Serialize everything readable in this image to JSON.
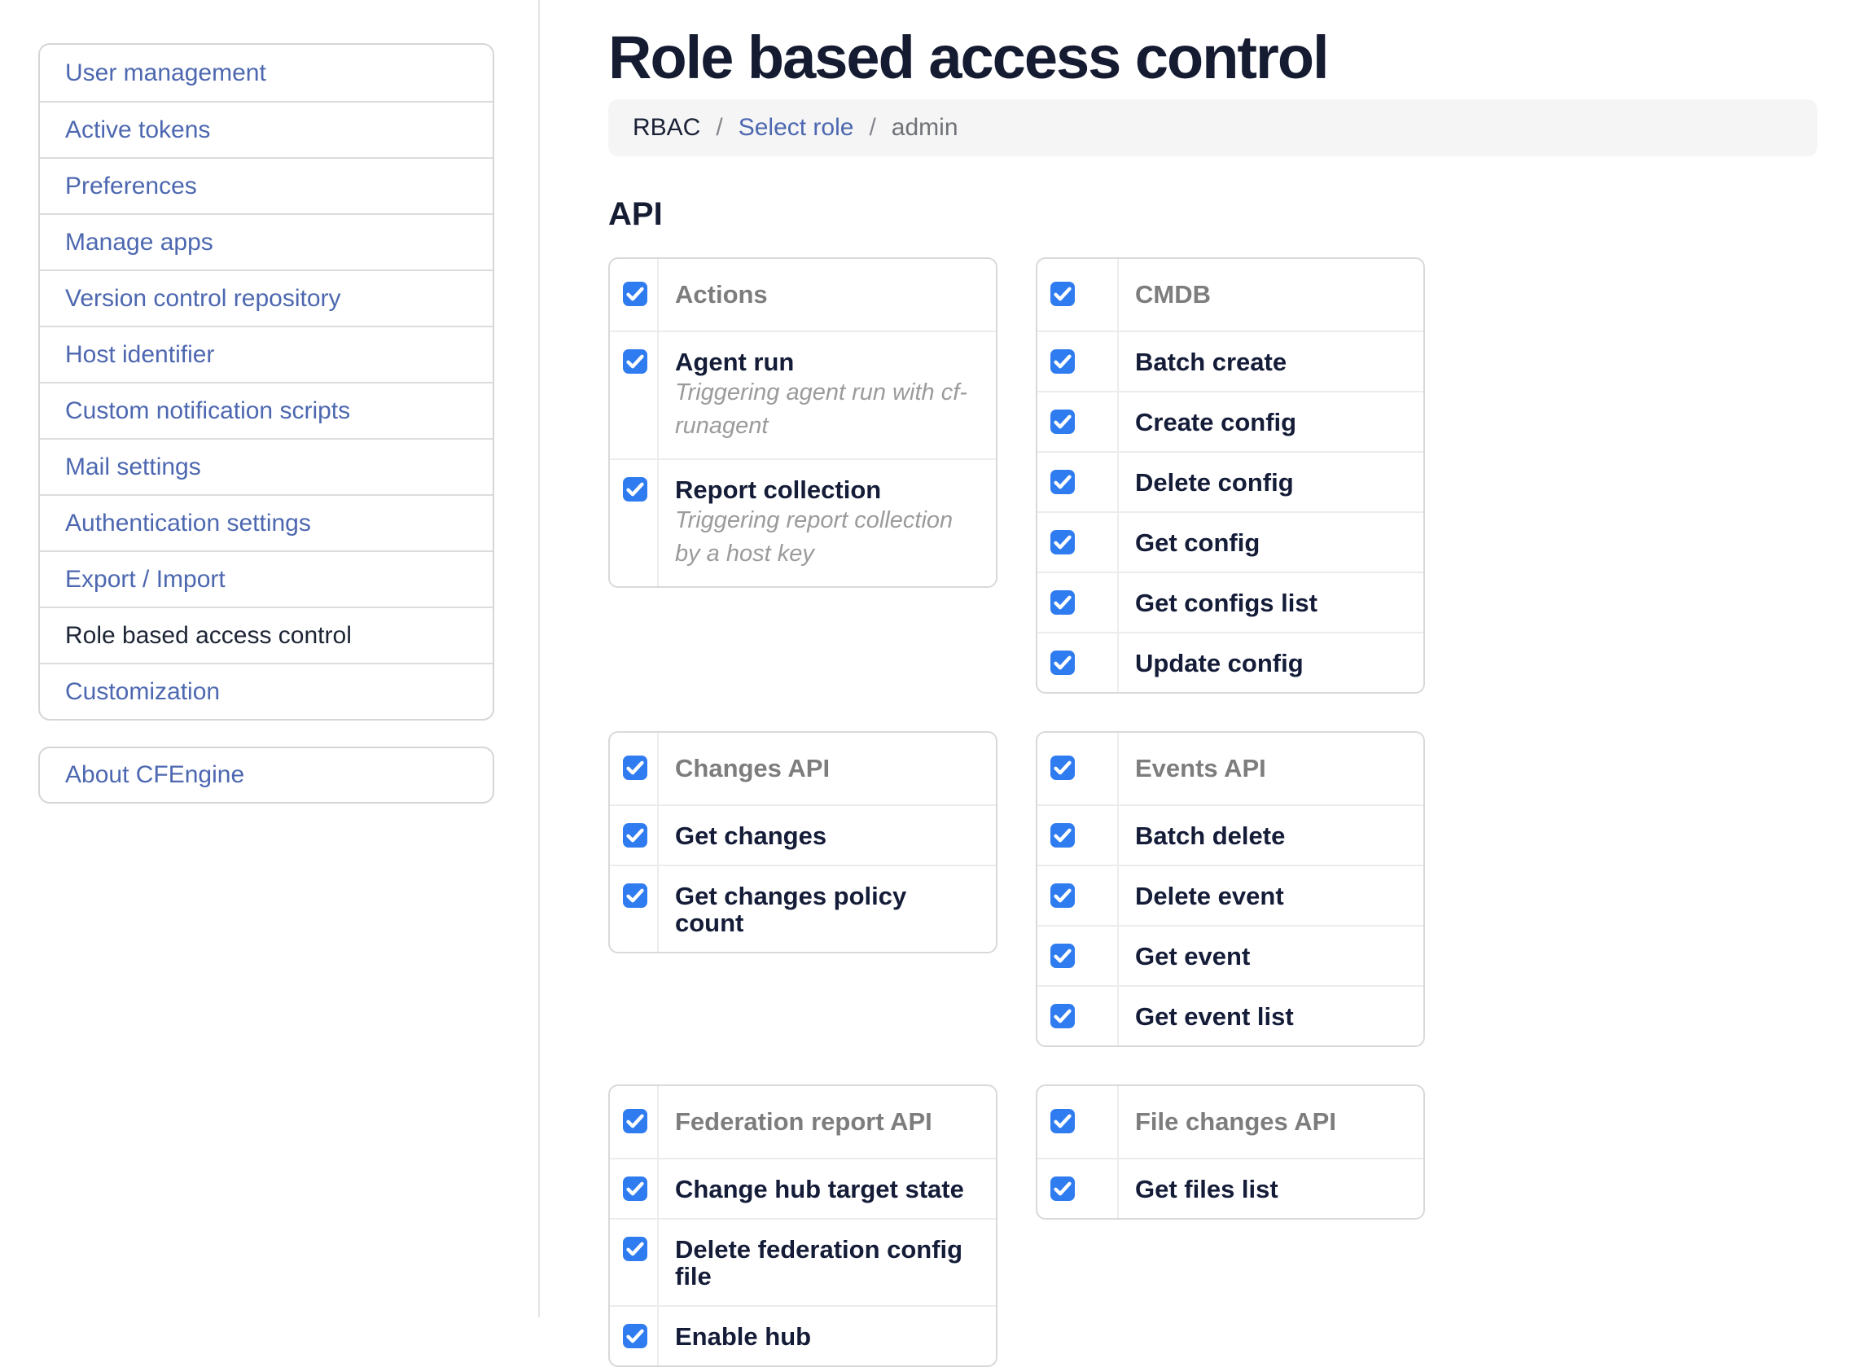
{
  "sidebar": {
    "items": [
      {
        "label": "User management",
        "active": false
      },
      {
        "label": "Active tokens",
        "active": false
      },
      {
        "label": "Preferences",
        "active": false
      },
      {
        "label": "Manage apps",
        "active": false
      },
      {
        "label": "Version control repository",
        "active": false
      },
      {
        "label": "Host identifier",
        "active": false
      },
      {
        "label": "Custom notification scripts",
        "active": false
      },
      {
        "label": "Mail settings",
        "active": false
      },
      {
        "label": "Authentication settings",
        "active": false
      },
      {
        "label": "Export / Import",
        "active": false
      },
      {
        "label": "Role based access control",
        "active": true
      },
      {
        "label": "Customization",
        "active": false
      }
    ],
    "about_label": "About CFEngine"
  },
  "header": {
    "title": "Role based access control",
    "breadcrumb_separator": "/",
    "breadcrumb": [
      {
        "label": "RBAC",
        "type": "plain"
      },
      {
        "label": "Select role",
        "type": "link"
      },
      {
        "label": "admin",
        "type": "current"
      }
    ]
  },
  "main": {
    "section_title": "API",
    "groups": [
      {
        "title": "Actions",
        "checked": true,
        "items": [
          {
            "label": "Agent run",
            "checked": true,
            "description": "Triggering agent run with cf-runagent"
          },
          {
            "label": "Report collection",
            "checked": true,
            "description": "Triggering report collection by a host key"
          }
        ]
      },
      {
        "title": "CMDB",
        "checked": true,
        "items": [
          {
            "label": "Batch create",
            "checked": true
          },
          {
            "label": "Create config",
            "checked": true
          },
          {
            "label": "Delete config",
            "checked": true
          },
          {
            "label": "Get config",
            "checked": true
          },
          {
            "label": "Get configs list",
            "checked": true
          },
          {
            "label": "Update config",
            "checked": true
          }
        ]
      },
      {
        "title": "Changes API",
        "checked": true,
        "items": [
          {
            "label": "Get changes",
            "checked": true
          },
          {
            "label": "Get changes policy count",
            "checked": true
          }
        ]
      },
      {
        "title": "Events API",
        "checked": true,
        "items": [
          {
            "label": "Batch delete",
            "checked": true
          },
          {
            "label": "Delete event",
            "checked": true
          },
          {
            "label": "Get event",
            "checked": true
          },
          {
            "label": "Get event list",
            "checked": true
          }
        ]
      },
      {
        "title": "Federation report API",
        "checked": true,
        "items": [
          {
            "label": "Change hub target state",
            "checked": true
          },
          {
            "label": "Delete federation config file",
            "checked": true
          },
          {
            "label": "Enable hub",
            "checked": true
          }
        ]
      },
      {
        "title": "File changes API",
        "checked": true,
        "items": [
          {
            "label": "Get files list",
            "checked": true
          }
        ]
      }
    ]
  },
  "colors": {
    "accent_checkbox": "#2f7cf0",
    "link_blue": "#4d68b0",
    "heading_navy": "#151b31",
    "group_header_gray": "#7d7d7d",
    "description_gray": "#9b9b9b",
    "breadcrumb_bg": "#f5f5f6"
  }
}
